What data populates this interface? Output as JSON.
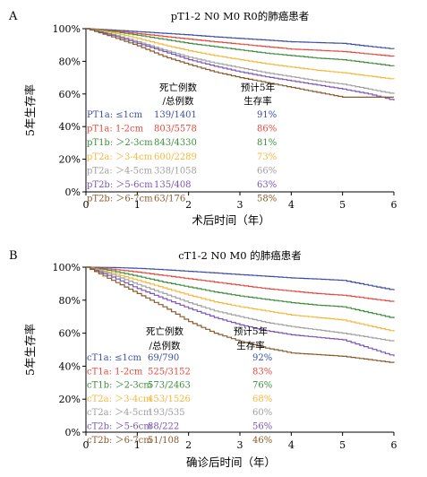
{
  "chart_data": [
    {
      "type": "line",
      "panel": "A",
      "title": "pT1-2 N0 M0 R0的肺癌患者",
      "xlabel": "术后时间（年）",
      "ylabel": "5年生存率",
      "xlim": [
        0,
        6
      ],
      "ylim": [
        0,
        100
      ],
      "x_ticks": [
        "0",
        "1",
        "2",
        "3",
        "4",
        "5",
        "6"
      ],
      "y_ticks": [
        "0%",
        "20%",
        "40%",
        "60%",
        "80%",
        "100%"
      ],
      "grid": false,
      "legend_position": "lower-left",
      "legend_header": {
        "col1_line1": "死亡例数",
        "col1_line2": "/总例数",
        "col2_line1": "预计5年",
        "col2_line2": "生存率"
      },
      "series": [
        {
          "name": "PT1a: ≤1cm",
          "deaths": "139/1401",
          "survival": "91%",
          "color": "#3b4ea8",
          "x": [
            0,
            0.5,
            1,
            1.5,
            2,
            2.5,
            3,
            3.5,
            4,
            4.5,
            5,
            5.5,
            6
          ],
          "y": [
            100,
            99.2,
            98.2,
            97.2,
            96.2,
            95.0,
            94.0,
            93.0,
            92.0,
            91.5,
            91.0,
            89.2,
            87.5
          ]
        },
        {
          "name": "pT1a: 1-2cm",
          "deaths": "803/5578",
          "survival": "86%",
          "color": "#e8483c",
          "x": [
            0,
            0.5,
            1,
            1.5,
            2,
            2.5,
            3,
            3.5,
            4,
            4.5,
            5,
            5.5,
            6
          ],
          "y": [
            100,
            98.8,
            97.0,
            95.3,
            93.6,
            92.0,
            90.5,
            89.0,
            87.5,
            86.8,
            86.0,
            84.5,
            83.0
          ]
        },
        {
          "name": "pT1b: ＞2-3cm",
          "deaths": "843/4330",
          "survival": "81%",
          "color": "#3e8e3e",
          "x": [
            0,
            0.5,
            1,
            1.5,
            2,
            2.5,
            3,
            3.5,
            4,
            4.5,
            5,
            5.5,
            6
          ],
          "y": [
            100,
            98.3,
            96.0,
            93.5,
            91.0,
            89.0,
            87.0,
            85.0,
            83.5,
            82.0,
            81.0,
            79.0,
            77.0
          ]
        },
        {
          "name": "pT2a: ＞3-4cm",
          "deaths": "600/2289",
          "survival": "73%",
          "color": "#f5b83d",
          "x": [
            0,
            0.5,
            1,
            1.5,
            2,
            2.5,
            3,
            3.5,
            4,
            4.5,
            5,
            5.5,
            6
          ],
          "y": [
            100,
            97.5,
            94.0,
            90.0,
            86.5,
            83.5,
            81.0,
            78.5,
            76.5,
            74.5,
            73.0,
            71.0,
            69.0
          ]
        },
        {
          "name": "pT2a: ＞4-5cm",
          "deaths": "338/1058",
          "survival": "66%",
          "color": "#a0a0a0",
          "x": [
            0,
            0.5,
            1,
            1.5,
            2,
            2.5,
            3,
            3.5,
            4,
            4.5,
            5,
            5.5,
            6
          ],
          "y": [
            100,
            96.5,
            92.0,
            87.0,
            82.5,
            79.0,
            76.0,
            73.0,
            70.5,
            68.0,
            66.0,
            63.0,
            60.0
          ]
        },
        {
          "name": "pT2b: ＞5-6cm",
          "deaths": "135/408",
          "survival": "63%",
          "color": "#7a55b5",
          "x": [
            0,
            0.5,
            1,
            1.5,
            2,
            2.5,
            3,
            3.5,
            4,
            4.5,
            5,
            5.5,
            6
          ],
          "y": [
            100,
            96.0,
            91.0,
            86.0,
            81.0,
            77.0,
            73.5,
            70.5,
            68.0,
            65.5,
            63.0,
            60.0,
            56.0
          ]
        },
        {
          "name": "pT2b: ＞6-7cm",
          "deaths": "63/176",
          "survival": "58%",
          "color": "#8a5a2b",
          "x": [
            0,
            0.5,
            1,
            1.5,
            2,
            2.5,
            3,
            3.5,
            4,
            4.5,
            5,
            5.5,
            6
          ],
          "y": [
            100,
            95.0,
            89.5,
            83.0,
            78.0,
            73.5,
            70.0,
            67.0,
            64.0,
            61.0,
            58.0,
            58.0,
            58.0
          ]
        }
      ]
    },
    {
      "type": "line",
      "panel": "B",
      "title": "cT1-2 N0 M0 的肺癌患者",
      "xlabel": "确诊后时间（年）",
      "ylabel": "5年生存率",
      "xlim": [
        0,
        6
      ],
      "ylim": [
        0,
        100
      ],
      "x_ticks": [
        "0",
        "1",
        "2",
        "3",
        "4",
        "5",
        "6"
      ],
      "y_ticks": [
        "0%",
        "20%",
        "40%",
        "60%",
        "80%",
        "100%"
      ],
      "grid": false,
      "legend_position": "lower-left",
      "legend_header": {
        "col1_line1": "死亡例数",
        "col1_line2": "/总例数",
        "col2_line1": "预计5年",
        "col2_line2": "生存率"
      },
      "series": [
        {
          "name": "cT1a: ≤1cm",
          "deaths": "69/790",
          "survival": "92%",
          "color": "#3b4ea8",
          "x": [
            0,
            0.5,
            1,
            1.5,
            2,
            2.5,
            3,
            3.5,
            4,
            4.5,
            5,
            5.5,
            6
          ],
          "y": [
            100,
            99.8,
            99.3,
            98.5,
            97.5,
            96.5,
            95.5,
            94.5,
            93.5,
            92.8,
            92.0,
            89.0,
            86.0
          ]
        },
        {
          "name": "cT1a: 1-2cm",
          "deaths": "525/3152",
          "survival": "83%",
          "color": "#e8483c",
          "x": [
            0,
            0.5,
            1,
            1.5,
            2,
            2.5,
            3,
            3.5,
            4,
            4.5,
            5,
            5.5,
            6
          ],
          "y": [
            100,
            98.8,
            97.0,
            95.0,
            93.0,
            91.0,
            89.0,
            87.0,
            85.5,
            84.0,
            83.0,
            81.0,
            79.0
          ]
        },
        {
          "name": "cT1b: ＞2-3cm",
          "deaths": "573/2463",
          "survival": "76%",
          "color": "#3e8e3e",
          "x": [
            0,
            0.5,
            1,
            1.5,
            2,
            2.5,
            3,
            3.5,
            4,
            4.5,
            5,
            5.5,
            6
          ],
          "y": [
            100,
            97.8,
            94.5,
            91.0,
            88.0,
            85.0,
            82.5,
            80.5,
            78.5,
            77.0,
            76.0,
            72.5,
            69.0
          ]
        },
        {
          "name": "cT2a: ＞3-4cm",
          "deaths": "453/1526",
          "survival": "68%",
          "color": "#f5b83d",
          "x": [
            0,
            0.5,
            1,
            1.5,
            2,
            2.5,
            3,
            3.5,
            4,
            4.5,
            5,
            5.5,
            6
          ],
          "y": [
            100,
            96.5,
            92.0,
            87.5,
            83.0,
            79.0,
            76.0,
            73.5,
            71.0,
            69.5,
            68.0,
            64.5,
            61.0
          ]
        },
        {
          "name": "cT2a: ＞4-5cm",
          "deaths": "193/535",
          "survival": "60%",
          "color": "#a0a0a0",
          "x": [
            0,
            0.5,
            1,
            1.5,
            2,
            2.5,
            3,
            3.5,
            4,
            4.5,
            5,
            5.5,
            6
          ],
          "y": [
            100,
            95.5,
            89.5,
            84.0,
            78.5,
            73.5,
            70.0,
            66.5,
            64.0,
            62.0,
            60.0,
            57.5,
            55.0
          ]
        },
        {
          "name": "cT2b: ＞5-6cm",
          "deaths": "88/222",
          "survival": "56%",
          "color": "#7a55b5",
          "x": [
            0,
            0.5,
            1,
            1.5,
            2,
            2.5,
            3,
            3.5,
            4,
            4.5,
            5,
            5.5,
            6
          ],
          "y": [
            100,
            94.0,
            87.0,
            81.0,
            75.0,
            69.5,
            65.0,
            61.5,
            59.0,
            57.5,
            56.0,
            51.0,
            46.0
          ]
        },
        {
          "name": "cT2b: ＞6-7cm",
          "deaths": "51/108",
          "survival": "46%",
          "color": "#8a5a2b",
          "x": [
            0,
            0.5,
            1,
            1.5,
            2,
            2.5,
            3,
            3.5,
            4,
            4.5,
            5,
            5.5,
            6
          ],
          "y": [
            100,
            92.0,
            84.0,
            76.0,
            67.0,
            60.0,
            55.0,
            51.0,
            48.0,
            47.0,
            46.0,
            44.0,
            42.0
          ]
        }
      ]
    }
  ]
}
